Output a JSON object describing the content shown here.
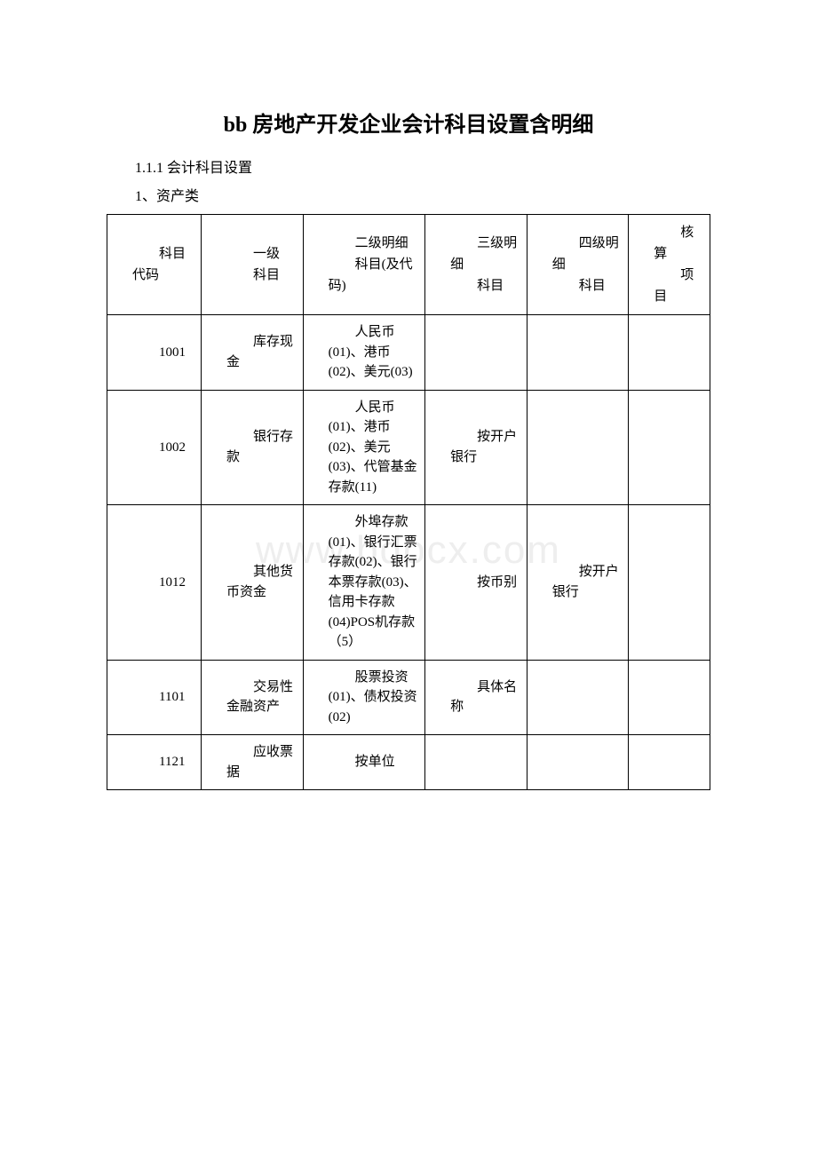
{
  "document": {
    "title": "bb 房地产开发企业会计科目设置含明细",
    "section_number": "1.1.1 会计科目设置",
    "category_label": "1、资产类",
    "watermark": "www.bdocx.com"
  },
  "table": {
    "headers": {
      "code": {
        "top": "科目",
        "bottom": "代码"
      },
      "l1": {
        "top": "一级",
        "bottom": "科目"
      },
      "l2": {
        "top": "二级明细",
        "bottom": "科目(及代码)"
      },
      "l3": {
        "top": "三级明细",
        "bottom": "科目"
      },
      "l4": {
        "top": "四级明细",
        "bottom": "科目"
      },
      "item": {
        "top": "核算",
        "bottom": "项目"
      }
    },
    "rows": [
      {
        "code": "1001",
        "l1": "库存现金",
        "l2": "人民币(01)、港币(02)、美元(03)",
        "l3": "",
        "l4": "",
        "item": ""
      },
      {
        "code": "1002",
        "l1": "银行存款",
        "l2": "人民币(01)、港币(02)、美元(03)、代管基金存款(11)",
        "l3": "按开户银行",
        "l4": "",
        "item": ""
      },
      {
        "code": "1012",
        "l1": "其他货币资金",
        "l2": "外埠存款(01)、银行汇票存款(02)、银行本票存款(03)、信用卡存款(04)POS机存款（5）",
        "l3": "按币别",
        "l4": "按开户银行",
        "item": ""
      },
      {
        "code": "1101",
        "l1": "交易性金融资产",
        "l2": "股票投资(01)、债权投资(02)",
        "l3": "具体名称",
        "l4": "",
        "item": ""
      },
      {
        "code": "1121",
        "l1": "应收票据",
        "l2": "按单位",
        "l3": "",
        "l4": "",
        "item": ""
      }
    ]
  },
  "style": {
    "background_color": "#ffffff",
    "text_color": "#000000",
    "border_color": "#000000",
    "watermark_color": "#eeeeee",
    "title_fontsize": 24,
    "body_fontsize": 15
  }
}
